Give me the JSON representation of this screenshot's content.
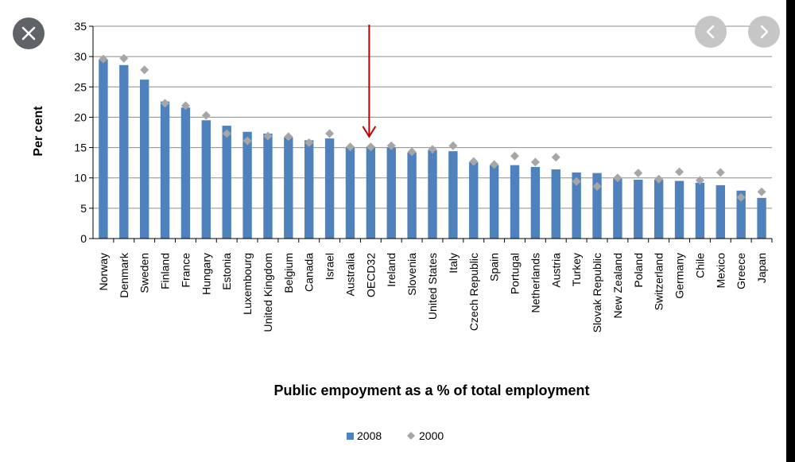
{
  "overlay": {
    "close_icon": "close-icon",
    "prev_icon": "chevron-left-icon",
    "next_icon": "chevron-right-icon"
  },
  "chart_data": {
    "type": "bar",
    "title": "",
    "xlabel": "Public empoyment as a % of total employment",
    "ylabel": "Per cent",
    "ylim": [
      0,
      35
    ],
    "yticks": [
      "0",
      "5",
      "10",
      "15",
      "20",
      "25",
      "30",
      "35"
    ],
    "categories": [
      "Norway",
      "Denmark",
      "Sweden",
      "Finland",
      "France",
      "Hungary",
      "Estonia",
      "Luxembourg",
      "United Kingdom",
      "Belgium",
      "Canada",
      "Israel",
      "Australia",
      "OECD32",
      "Ireland",
      "Slovenia",
      "United States",
      "Italy",
      "Czech Republic",
      "Spain",
      "Portugal",
      "Netherlands",
      "Austria",
      "Turkey",
      "Slovak Republic",
      "New Zealand",
      "Poland",
      "Switzerland",
      "Germany",
      "Chile",
      "Mexico",
      "Greece",
      "Japan"
    ],
    "series": [
      {
        "name": "2008",
        "marker": "bar",
        "color": "#4f81bd",
        "values": [
          29.5,
          28.6,
          26.2,
          22.6,
          21.6,
          19.5,
          18.6,
          17.6,
          17.3,
          16.7,
          16.2,
          16.5,
          15.0,
          15.1,
          15.0,
          14.2,
          14.6,
          14.4,
          12.6,
          12.1,
          12.1,
          11.8,
          11.4,
          10.9,
          10.8,
          9.9,
          9.7,
          9.7,
          9.5,
          9.2,
          8.8,
          7.9,
          6.7
        ]
      },
      {
        "name": "2000",
        "marker": "diamond",
        "color": "#a6a6a6",
        "values": [
          29.6,
          29.7,
          27.8,
          22.3,
          21.9,
          20.3,
          17.3,
          16.1,
          16.9,
          16.8,
          15.8,
          17.3,
          15.1,
          15.1,
          15.3,
          14.3,
          14.7,
          15.3,
          12.7,
          12.2,
          13.6,
          12.6,
          13.4,
          9.4,
          8.6,
          10.0,
          10.8,
          9.8,
          11.0,
          9.6,
          10.9,
          6.8,
          7.7
        ]
      }
    ],
    "annotations": [
      {
        "type": "arrow",
        "direction": "down",
        "target": "OECD32",
        "color": "#c00000"
      }
    ],
    "legend_position": "bottom-center",
    "grid": true
  }
}
